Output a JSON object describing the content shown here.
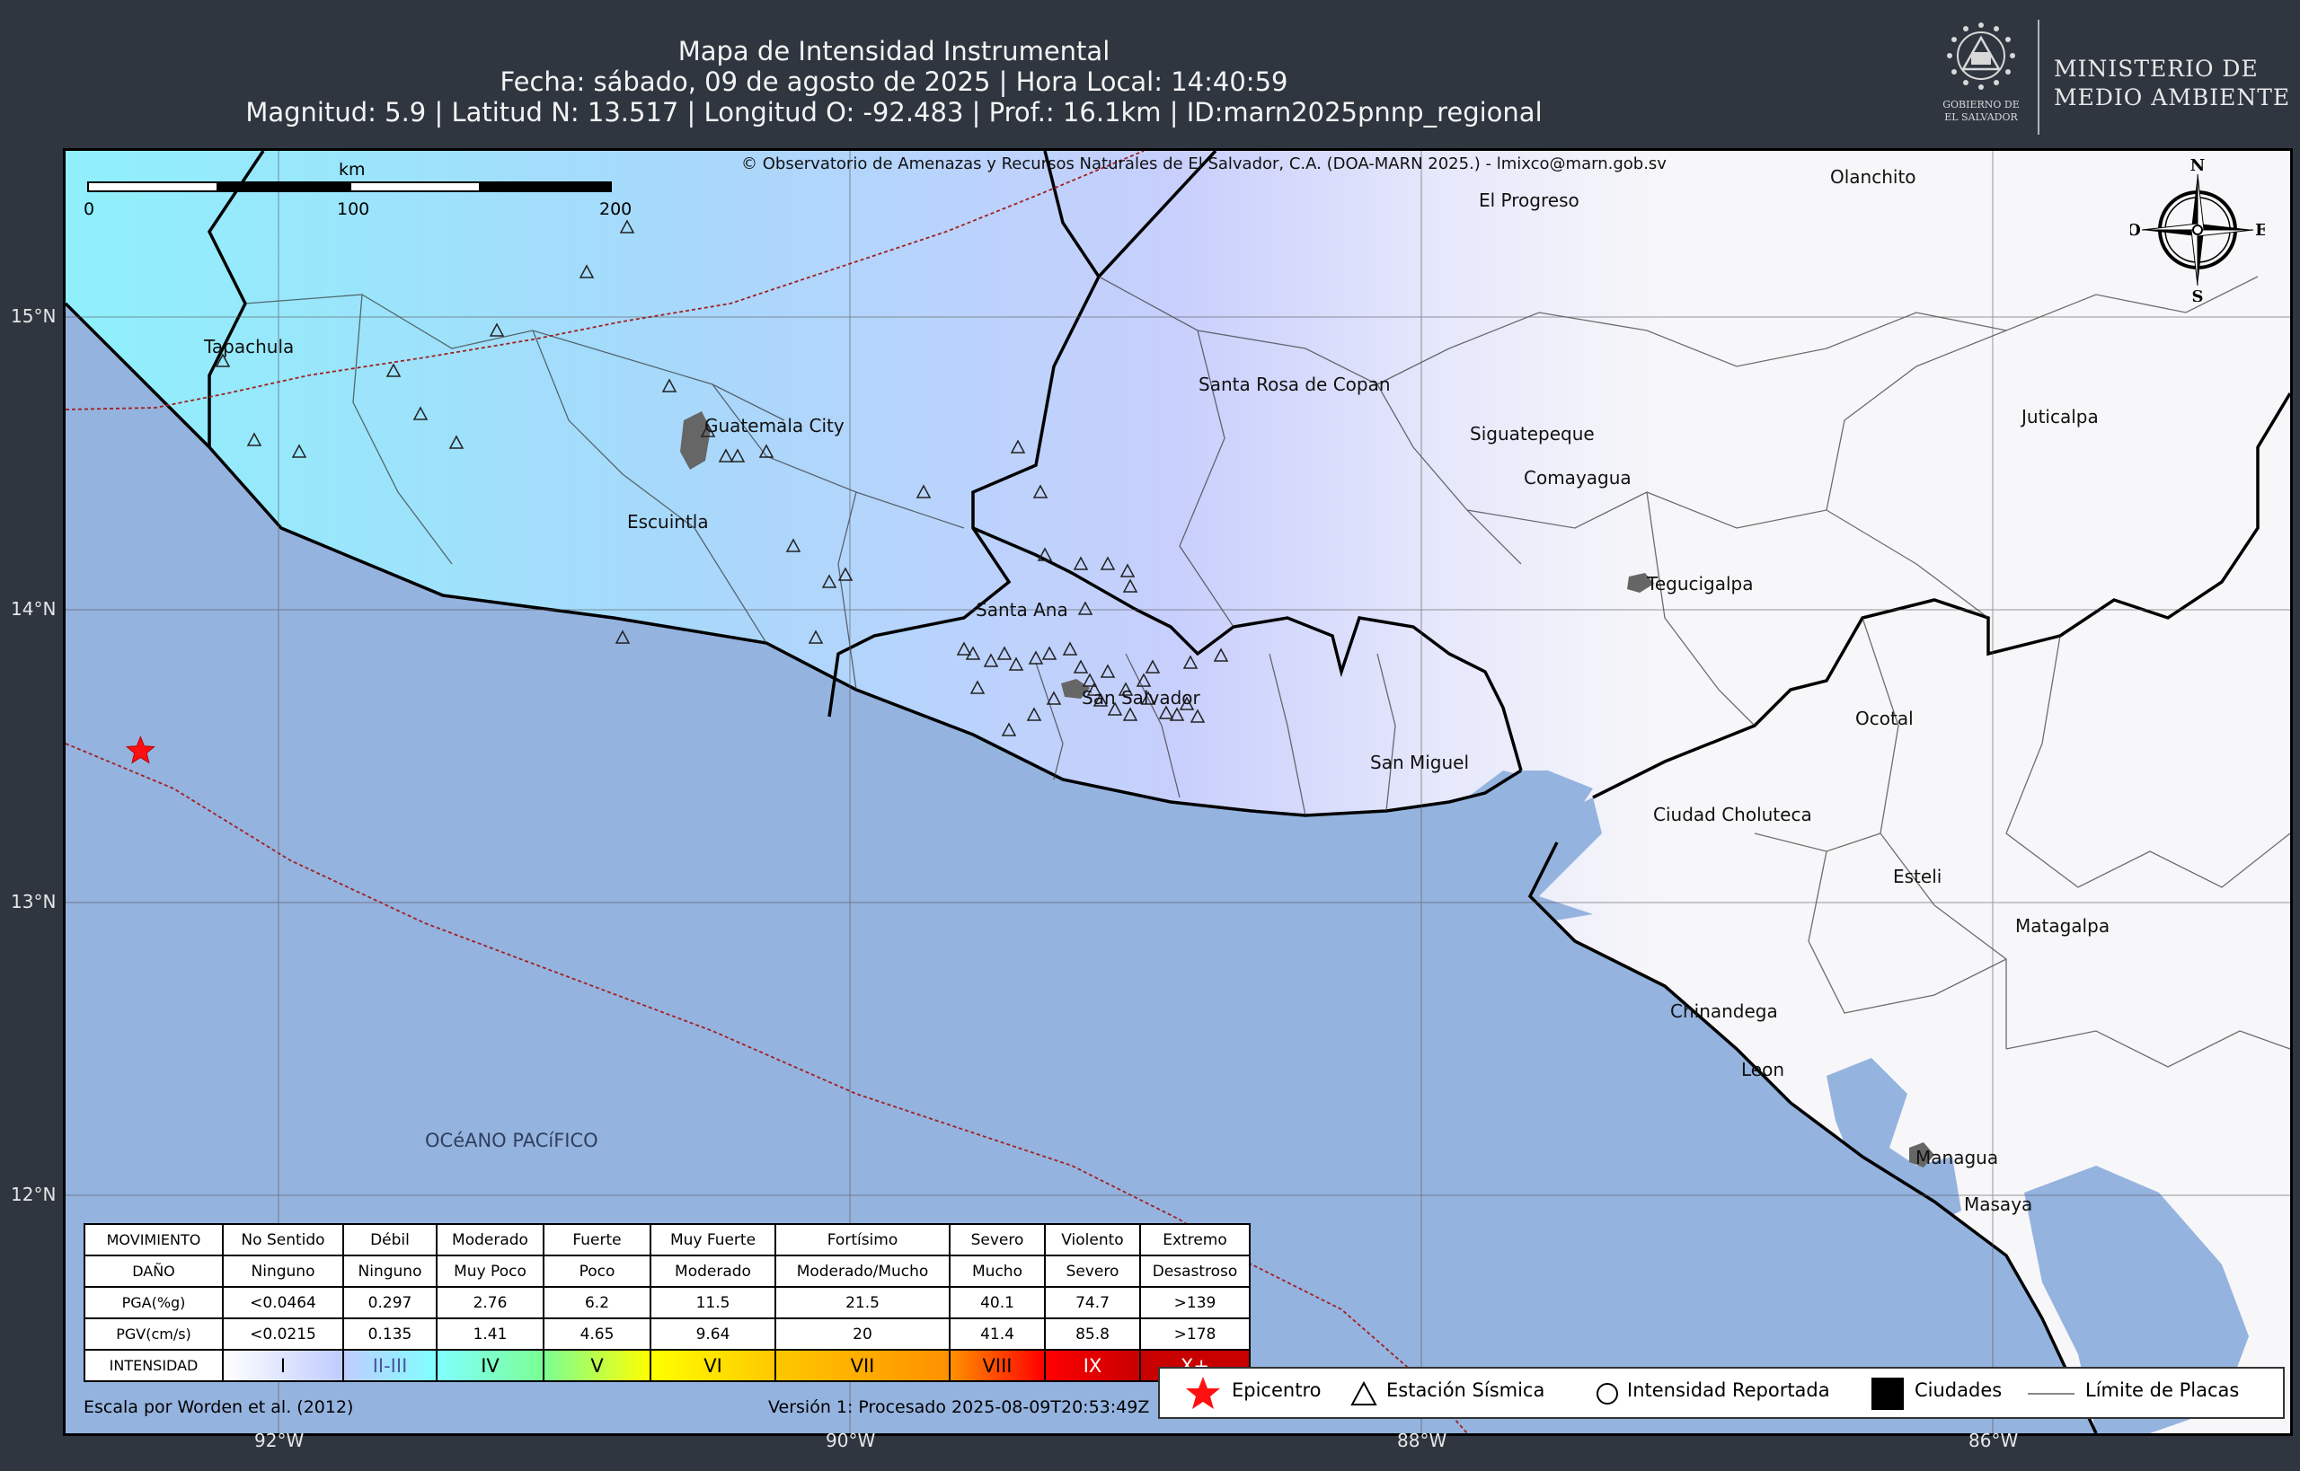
{
  "header": {
    "title": "Mapa de Intensidad Instrumental",
    "line2": "Fecha: sábado, 09 de agosto de 2025 | Hora Local: 14:40:59",
    "line3": "Magnitud: 5.9 | Latitud N: 13.517 | Longitud O: -92.483 | Prof.: 16.1km | ID:marn2025pnnp_regional"
  },
  "logo": {
    "line1": "MINISTERIO DE",
    "line2": "MEDIO AMBIENTE",
    "seal_text1": "GOBIERNO DE",
    "seal_text2": "EL SALVADOR"
  },
  "map": {
    "credit": "© Observatorio de Amenazas y Recursos Naturales de El Salvador, C.A. (DOA-MARN 2025.) - lmixco@marn.gob.sv",
    "scalebar": {
      "unit": "km",
      "ticks": [
        "0",
        "100",
        "200"
      ]
    },
    "compass": {
      "n": "N",
      "s": "S",
      "e": "E",
      "w": "O"
    },
    "ocean_label": "OCéANO PACíFICO",
    "epicenter": {
      "lat": 13.517,
      "lon": -92.483
    },
    "cities": [
      {
        "name": "Tapachula",
        "lon": -92.26,
        "lat": 14.9
      },
      {
        "name": "Guatemala City",
        "lon": -90.51,
        "lat": 14.63
      },
      {
        "name": "Escuintla",
        "lon": -90.78,
        "lat": 14.3
      },
      {
        "name": "Santa Ana",
        "lon": -89.56,
        "lat": 14.0
      },
      {
        "name": "San Salvador",
        "lon": -89.19,
        "lat": 13.7
      },
      {
        "name": "San Miguel",
        "lon": -88.18,
        "lat": 13.48
      },
      {
        "name": "El Progreso",
        "lon": -87.8,
        "lat": 15.4
      },
      {
        "name": "Olanchito",
        "lon": -86.57,
        "lat": 15.48
      },
      {
        "name": "Santa Rosa de Copan",
        "lon": -88.78,
        "lat": 14.77
      },
      {
        "name": "Siguatepeque",
        "lon": -87.83,
        "lat": 14.6
      },
      {
        "name": "Comayagua",
        "lon": -87.64,
        "lat": 14.45
      },
      {
        "name": "Juticalpa",
        "lon": -85.9,
        "lat": 14.66
      },
      {
        "name": "Tegucigalpa",
        "lon": -87.21,
        "lat": 14.09
      },
      {
        "name": "Ocotal",
        "lon": -86.48,
        "lat": 13.63
      },
      {
        "name": "Ciudad Choluteca",
        "lon": -87.19,
        "lat": 13.3
      },
      {
        "name": "Esteli",
        "lon": -86.35,
        "lat": 13.09
      },
      {
        "name": "Matagalpa",
        "lon": -85.92,
        "lat": 12.92
      },
      {
        "name": "Chinandega",
        "lon": -87.13,
        "lat": 12.63
      },
      {
        "name": "Leon",
        "lon": -86.88,
        "lat": 12.43
      },
      {
        "name": "Managua",
        "lon": -86.27,
        "lat": 12.13
      },
      {
        "name": "Masaya",
        "lon": -86.1,
        "lat": 11.97
      }
    ],
    "axes": {
      "lon_ticks": [
        "92°W",
        "90°W",
        "88°W",
        "86°W"
      ],
      "lat_ticks": [
        "15°N",
        "14°N",
        "13°N",
        "12°N"
      ]
    }
  },
  "intensity_table": {
    "rows": [
      {
        "label": "MOVIMIENTO",
        "cells": [
          "No Sentido",
          "Débil",
          "Moderado",
          "Fuerte",
          "Muy Fuerte",
          "Fortísimo",
          "Severo",
          "Violento",
          "Extremo"
        ]
      },
      {
        "label": "DAÑO",
        "cells": [
          "Ninguno",
          "Ninguno",
          "Muy Poco",
          "Poco",
          "Moderado",
          "Moderado/Mucho",
          "Mucho",
          "Severo",
          "Desastroso"
        ]
      },
      {
        "label": "PGA(%g)",
        "cells": [
          "<0.0464",
          "0.297",
          "2.76",
          "6.2",
          "11.5",
          "21.5",
          "40.1",
          "74.7",
          ">139"
        ]
      },
      {
        "label": "PGV(cm/s)",
        "cells": [
          "<0.0215",
          "0.135",
          "1.41",
          "4.65",
          "9.64",
          "20",
          "41.4",
          "85.8",
          ">178"
        ]
      }
    ],
    "intensity_label": "INTENSIDAD",
    "intensities": [
      "I",
      "II-III",
      "IV",
      "V",
      "VI",
      "VII",
      "VIII",
      "IX",
      "X+"
    ],
    "colors": [
      "#ffffff",
      "#bfccff",
      "#80ffff",
      "#7aff93",
      "#ffff00",
      "#ffc800",
      "#ff9100",
      "#ff0000",
      "#c80000"
    ]
  },
  "symbol_legend": {
    "epicenter": "Epicentro",
    "station": "Estación Sísmica",
    "reported": "Intensidad Reportada",
    "cities": "Ciudades",
    "plates": "Límite de Placas"
  },
  "footer": {
    "left": "Escala por Worden et al. (2012)",
    "right": "Versión 1: Procesado 2025-08-09T20:53:49Z"
  }
}
